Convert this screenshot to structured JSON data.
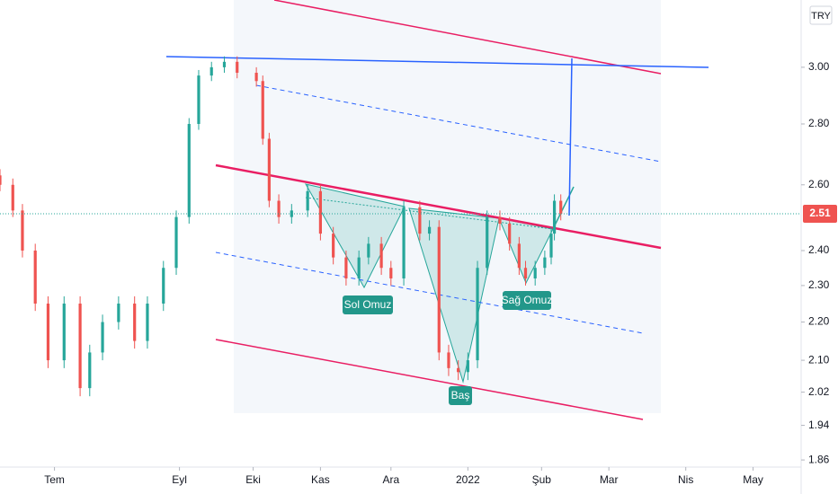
{
  "chart_data": {
    "type": "candlestick",
    "currency": "TRY",
    "log_scale": true,
    "up_color": "#26a69a",
    "down_color": "#ef5350",
    "x": [
      0,
      4,
      7,
      11,
      15,
      20,
      25,
      28,
      32,
      37,
      42,
      46,
      51,
      55,
      59,
      62,
      66,
      70,
      74,
      80,
      82,
      84,
      87,
      91,
      96,
      100,
      104,
      108,
      112,
      115,
      119,
      122,
      126,
      131,
      134,
      137,
      140,
      143,
      146,
      149,
      152,
      156,
      159,
      162,
      164,
      167,
      170,
      172,
      173,
      175
    ],
    "open": [
      2.63,
      2.6,
      2.52,
      2.4,
      2.25,
      2.1,
      2.25,
      2.03,
      2.12,
      2.2,
      2.25,
      2.15,
      2.25,
      2.35,
      2.5,
      2.8,
      2.97,
      3.0,
      3.02,
      2.98,
      2.95,
      2.75,
      2.55,
      2.5,
      2.52,
      2.58,
      2.45,
      2.38,
      2.32,
      2.38,
      2.42,
      2.35,
      2.32,
      2.53,
      2.45,
      2.47,
      2.12,
      2.08,
      2.07,
      2.1,
      2.35,
      2.5,
      2.48,
      2.42,
      2.35,
      2.32,
      2.35,
      2.38,
      2.45,
      2.55
    ],
    "high": [
      2.65,
      2.62,
      2.54,
      2.42,
      2.27,
      2.27,
      2.27,
      2.14,
      2.22,
      2.27,
      2.27,
      2.27,
      2.37,
      2.52,
      2.82,
      2.99,
      3.02,
      3.04,
      3.04,
      3.0,
      2.97,
      2.77,
      2.57,
      2.54,
      2.6,
      2.6,
      2.47,
      2.4,
      2.4,
      2.44,
      2.44,
      2.37,
      2.55,
      2.55,
      2.49,
      2.49,
      2.14,
      2.1,
      2.12,
      2.37,
      2.52,
      2.52,
      2.5,
      2.44,
      2.37,
      2.37,
      2.4,
      2.47,
      2.57,
      2.57
    ],
    "low": [
      2.58,
      2.5,
      2.38,
      2.23,
      2.08,
      2.08,
      2.01,
      2.01,
      2.1,
      2.18,
      2.13,
      2.13,
      2.23,
      2.33,
      2.48,
      2.78,
      2.95,
      2.98,
      2.96,
      2.93,
      2.73,
      2.53,
      2.48,
      2.48,
      2.5,
      2.43,
      2.36,
      2.3,
      2.3,
      2.36,
      2.33,
      2.3,
      2.3,
      2.43,
      2.43,
      2.1,
      2.06,
      2.05,
      2.05,
      2.08,
      2.33,
      2.46,
      2.4,
      2.33,
      2.3,
      2.3,
      2.33,
      2.36,
      2.43,
      2.49
    ],
    "close": [
      2.6,
      2.52,
      2.4,
      2.25,
      2.1,
      2.25,
      2.03,
      2.12,
      2.2,
      2.25,
      2.15,
      2.25,
      2.35,
      2.5,
      2.8,
      2.97,
      3.0,
      3.02,
      2.98,
      2.95,
      2.75,
      2.55,
      2.5,
      2.52,
      2.58,
      2.45,
      2.38,
      2.32,
      2.38,
      2.42,
      2.35,
      2.32,
      2.53,
      2.45,
      2.47,
      2.12,
      2.08,
      2.07,
      2.1,
      2.35,
      2.5,
      2.48,
      2.42,
      2.35,
      2.32,
      2.35,
      2.38,
      2.45,
      2.55,
      2.51
    ],
    "xlim": [
      0,
      250
    ],
    "xticks": [
      {
        "value": 17,
        "label": "Tem"
      },
      {
        "value": 56,
        "label": "Eyl"
      },
      {
        "value": 79,
        "label": "Eki"
      },
      {
        "value": 100,
        "label": "Kas"
      },
      {
        "value": 122,
        "label": "Ara"
      },
      {
        "value": 146,
        "label": "2022"
      },
      {
        "value": 169,
        "label": "Şub"
      },
      {
        "value": 190,
        "label": "Mar"
      },
      {
        "value": 214,
        "label": "Nis"
      },
      {
        "value": 235,
        "label": "May"
      }
    ],
    "ylim": [
      1.844,
      3.256
    ],
    "yticks": [
      {
        "value": 3,
        "label": "3.00"
      },
      {
        "value": 2.8,
        "label": "2.80"
      },
      {
        "value": 2.6,
        "label": "2.60"
      },
      {
        "value": 2.4,
        "label": "2.40"
      },
      {
        "value": 2.3,
        "label": "2.30"
      },
      {
        "value": 2.2,
        "label": "2.20"
      },
      {
        "value": 2.1,
        "label": "2.10"
      },
      {
        "value": 2.02,
        "label": "2.02"
      },
      {
        "value": 1.94,
        "label": "1.94"
      },
      {
        "value": 1.86,
        "label": "1.86"
      }
    ],
    "last_price": 2.51,
    "annotations": [
      "Sol Omuz",
      "Baş",
      "Sağ Omuz"
    ]
  }
}
